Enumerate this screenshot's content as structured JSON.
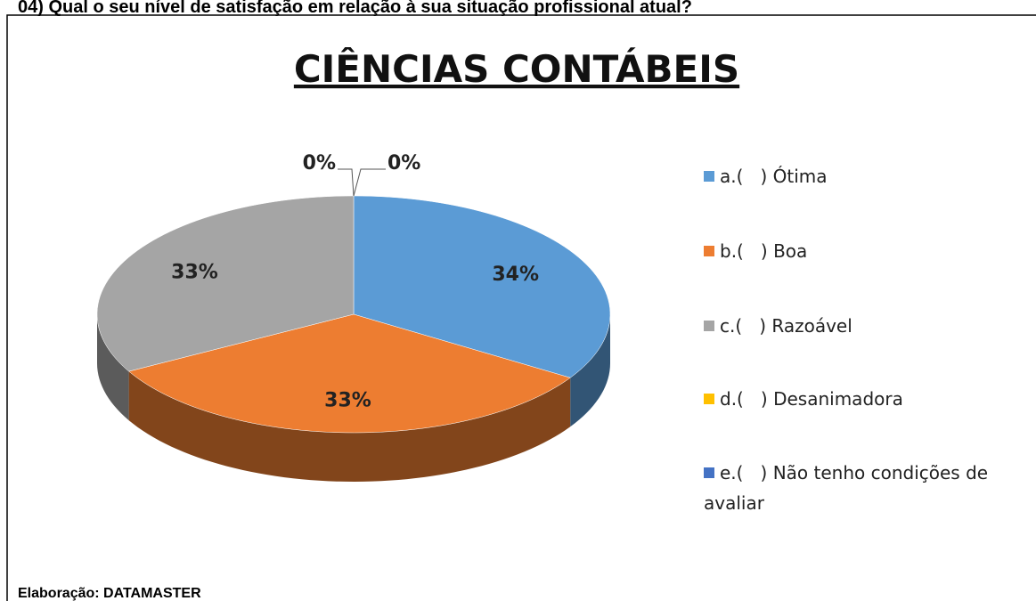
{
  "heading": "04) Qual o seu nível de satisfação em relação à sua situação profissional atual?",
  "source": "Elaboração: DATAMASTER",
  "chart_data": {
    "type": "pie",
    "title": "CIÊNCIAS CONTÁBEIS",
    "categories": [
      "a.(   ) Ótima",
      "b.(   ) Boa",
      "c.(   ) Razoável",
      "d.(   ) Desanimadora",
      "e.(   ) Não tenho condições de avaliar"
    ],
    "values": [
      34,
      33,
      33,
      0,
      0
    ],
    "value_labels": [
      "34%",
      "33%",
      "33%",
      "0%",
      "0%"
    ],
    "colors": [
      "#5b9bd5",
      "#ed7d31",
      "#a5a5a5",
      "#ffc000",
      "#4472c4"
    ],
    "legend": "right"
  }
}
